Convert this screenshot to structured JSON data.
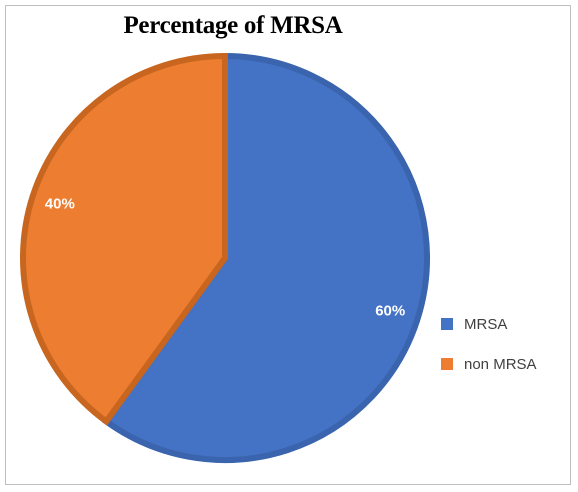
{
  "chart_data": {
    "type": "pie",
    "title": "Percentage of MRSA",
    "categories": [
      "MRSA",
      "non MRSA"
    ],
    "values": [
      60,
      40
    ],
    "data_labels": [
      "60%",
      "40%"
    ],
    "colors": [
      "#4472c4",
      "#ed7d31"
    ],
    "border_colors": [
      "#3a64ad",
      "#c8661f"
    ],
    "legend_position": "right"
  }
}
